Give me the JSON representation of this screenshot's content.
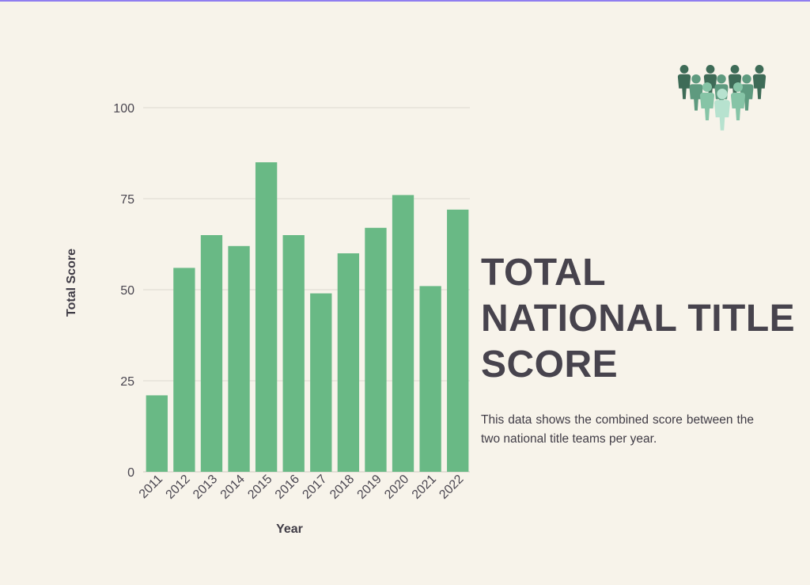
{
  "page": {
    "accent_color": "#8f7df0",
    "background_color": "#f7f3ea",
    "headline": "TOTAL NATIONAL TITLE SCORE",
    "description": "This data shows the combined score between the two national title teams per year.",
    "logo_icon": "people-group-icon",
    "logo_colors": [
      "#3e6b57",
      "#5e9a7f",
      "#86c4a6",
      "#b7e2cf"
    ]
  },
  "chart_data": {
    "type": "bar",
    "categories": [
      "2011",
      "2012",
      "2013",
      "2014",
      "2015",
      "2016",
      "2017",
      "2018",
      "2019",
      "2020",
      "2021",
      "2022"
    ],
    "values": [
      21,
      56,
      65,
      62,
      85,
      65,
      49,
      60,
      67,
      76,
      51,
      72
    ],
    "xlabel": "Year",
    "ylabel": "Total Score",
    "ylim": [
      0,
      100
    ],
    "yticks": [
      0,
      25,
      50,
      75,
      100
    ],
    "bar_color": "#69b985",
    "grid": true,
    "legend": "none"
  }
}
